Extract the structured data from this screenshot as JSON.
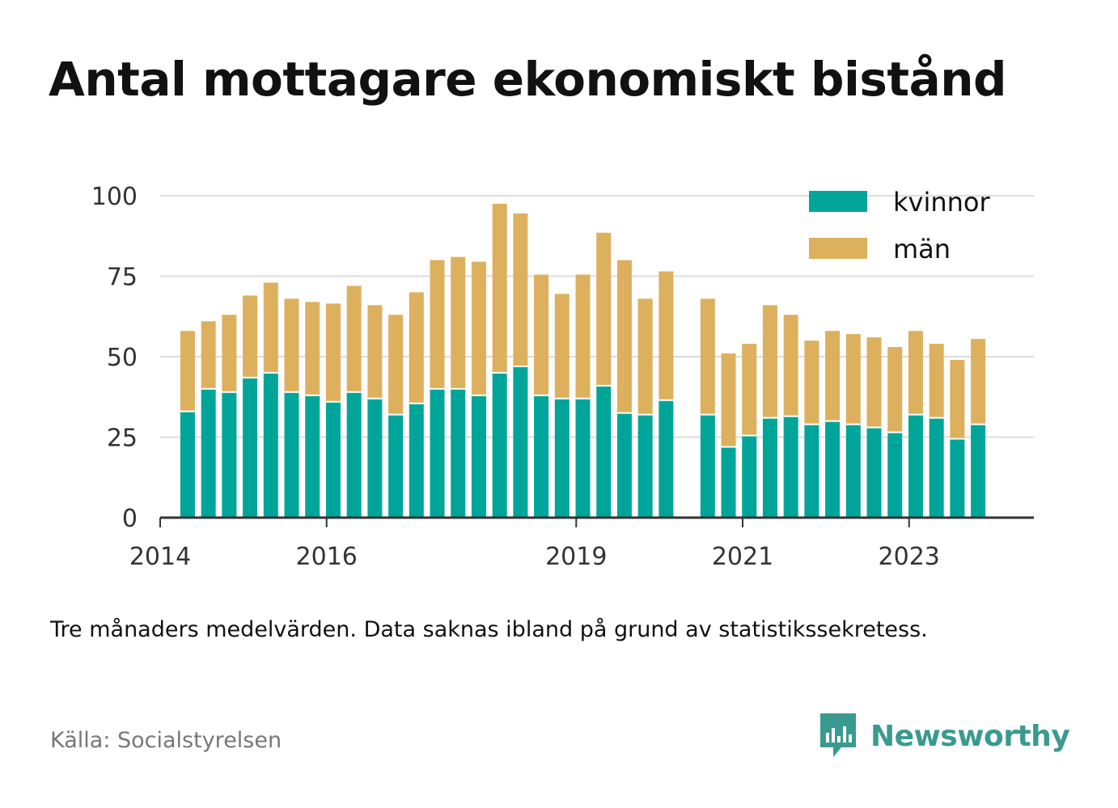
{
  "title": "Antal mottagare ekonomiskt bistånd",
  "note": "Tre månaders medelvärden. Data saknas ibland på grund av statistikssekretess.",
  "source": "Källa: Socialstyrelsen",
  "brand": "Newsworthy",
  "colors": {
    "kvinnor": "#00a599",
    "man": "#ddb05e",
    "grid": "#dddddd",
    "axis": "#333333",
    "brand": "#3a9a8f"
  },
  "chart_data": {
    "type": "bar",
    "stacked": true,
    "ylim": [
      0,
      100
    ],
    "yticks": [
      0,
      25,
      50,
      75,
      100
    ],
    "xlim": [
      2014,
      2024.5
    ],
    "xticks": [
      2014,
      2016,
      2019,
      2021,
      2023
    ],
    "legend": [
      {
        "key": "kvinnor",
        "label": "kvinnor"
      },
      {
        "key": "man",
        "label": "män"
      }
    ],
    "legend_position": "top-right",
    "x": [
      2014.33,
      2014.58,
      2014.83,
      2015.08,
      2015.33,
      2015.58,
      2015.83,
      2016.08,
      2016.33,
      2016.58,
      2016.83,
      2017.08,
      2017.33,
      2017.58,
      2017.83,
      2018.08,
      2018.33,
      2018.58,
      2018.83,
      2019.08,
      2019.33,
      2019.58,
      2019.83,
      2020.08,
      2020.58,
      2020.83,
      2021.08,
      2021.33,
      2021.58,
      2021.83,
      2022.08,
      2022.33,
      2022.58,
      2022.83,
      2023.08,
      2023.33,
      2023.58,
      2023.83
    ],
    "series": [
      {
        "name": "kvinnor",
        "values": [
          33,
          40,
          39,
          43.5,
          45,
          39,
          38,
          36,
          39,
          37,
          32,
          35.5,
          40,
          40,
          38,
          45,
          47,
          38,
          37,
          37,
          41,
          32.5,
          32,
          36.5,
          32,
          22,
          25.5,
          31,
          31.5,
          29,
          30,
          29,
          28,
          26.5,
          32,
          31,
          24.5,
          29
        ]
      },
      {
        "name": "män",
        "values": [
          25,
          21,
          24,
          25.5,
          28,
          29,
          29,
          30.5,
          33,
          29,
          31,
          34.5,
          40,
          41,
          41.5,
          52.5,
          47.5,
          37.5,
          32.5,
          38.5,
          47.5,
          47.5,
          36,
          40,
          36,
          29,
          28.5,
          35,
          31.5,
          26,
          28,
          28,
          28,
          26.5,
          26,
          23,
          24.5,
          26.5
        ]
      }
    ]
  }
}
